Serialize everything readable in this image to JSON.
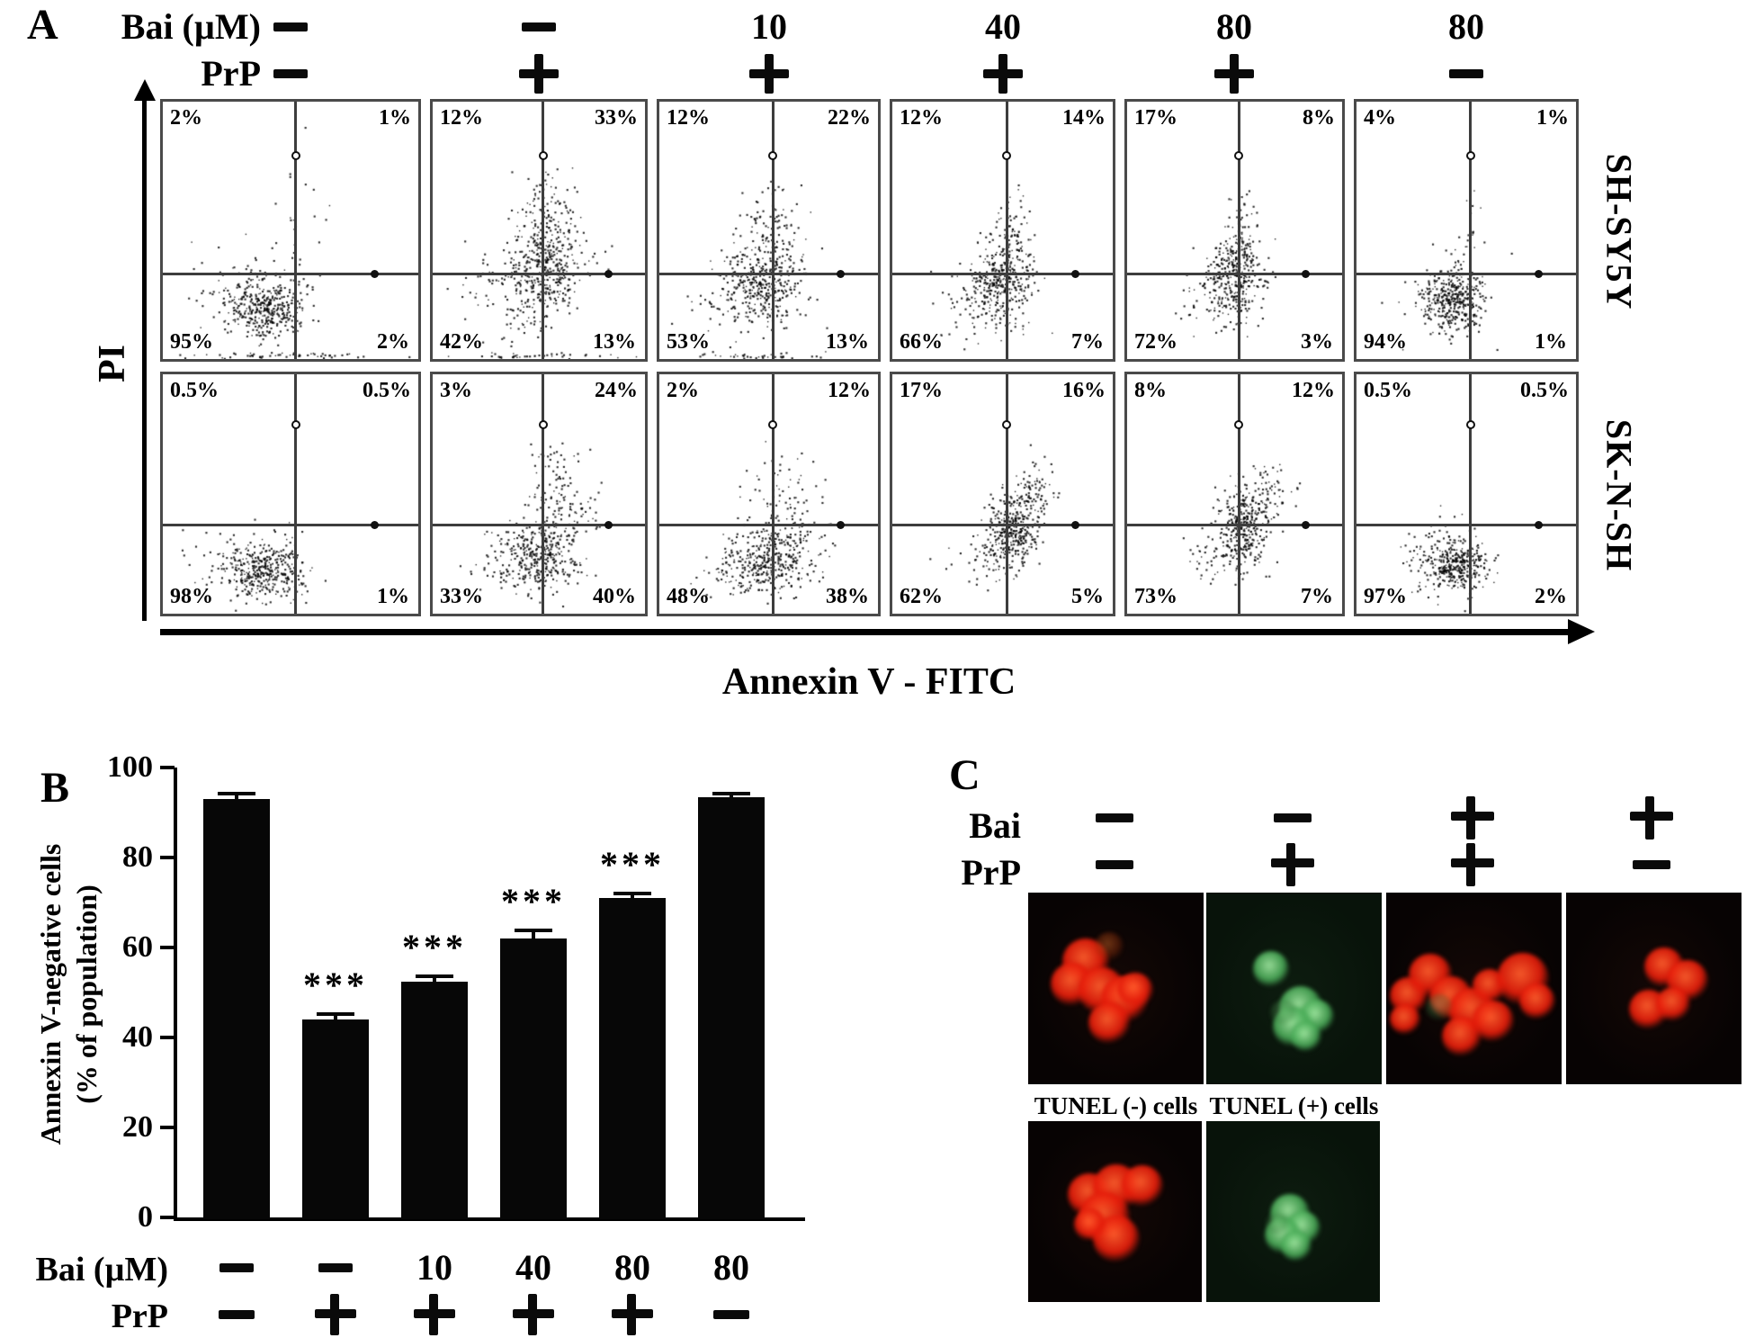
{
  "colors": {
    "red_core": "rgba(255,92,44,0.95)",
    "red_mid": "rgba(228,28,10,0.92)",
    "red_edge": "rgba(110,8,2,0)",
    "green_core": "rgba(160,232,160,0.92)",
    "green_mid": "rgba(74,172,88,0.88)",
    "green_edge": "rgba(18,58,24,0)",
    "red_image_bg": "#070303",
    "green_image_bg": "#08130a",
    "bar_color": "#070707"
  },
  "panel_a": {
    "label": "A",
    "bai_label": "Bai (µM)",
    "prp_label": "PrP",
    "bai_values": [
      "-",
      "-",
      "10",
      "40",
      "80",
      "80"
    ],
    "prp_values": [
      "-",
      "+",
      "+",
      "+",
      "+",
      "-"
    ],
    "y_axis_label": "PI",
    "x_axis_label": "Annexin V - FITC",
    "cell_lines": [
      "SH-SY5Y",
      "SK-N-SH"
    ],
    "rows": [
      {
        "cell_line": "SH-SY5Y",
        "plots": [
          {
            "tl": "2%",
            "tr": "1%",
            "bl": "95%",
            "br": "2%",
            "clusters": [
              [
                0.4,
                0.8,
                0.07,
                0.055,
                320
              ],
              [
                0.33,
                0.76,
                0.11,
                0.08,
                110
              ],
              [
                0.52,
                0.55,
                0.05,
                0.15,
                30
              ],
              [
                0.45,
                0.985,
                0.18,
                0.006,
                50
              ]
            ]
          },
          {
            "tl": "12%",
            "tr": "33%",
            "bl": "42%",
            "br": "13%",
            "clusters": [
              [
                0.52,
                0.66,
                0.09,
                0.085,
                330
              ],
              [
                0.54,
                0.48,
                0.08,
                0.09,
                150
              ],
              [
                0.36,
                0.74,
                0.12,
                0.09,
                90
              ],
              [
                0.45,
                0.985,
                0.18,
                0.006,
                40
              ]
            ]
          },
          {
            "tl": "12%",
            "tr": "22%",
            "bl": "53%",
            "br": "13%",
            "clusters": [
              [
                0.48,
                0.7,
                0.09,
                0.08,
                330
              ],
              [
                0.52,
                0.5,
                0.08,
                0.09,
                100
              ],
              [
                0.33,
                0.76,
                0.11,
                0.08,
                70
              ],
              [
                0.45,
                0.985,
                0.18,
                0.006,
                40
              ]
            ]
          },
          {
            "tl": "12%",
            "tr": "14%",
            "bl": "66%",
            "br": "7%",
            "clusters": [
              [
                0.49,
                0.7,
                0.075,
                0.08,
                320
              ],
              [
                0.54,
                0.52,
                0.06,
                0.08,
                80
              ],
              [
                0.36,
                0.78,
                0.1,
                0.07,
                60
              ]
            ]
          },
          {
            "tl": "17%",
            "tr": "8%",
            "bl": "72%",
            "br": "3%",
            "clusters": [
              [
                0.5,
                0.68,
                0.065,
                0.08,
                330
              ],
              [
                0.54,
                0.52,
                0.05,
                0.08,
                60
              ],
              [
                0.38,
                0.78,
                0.1,
                0.06,
                50
              ]
            ]
          },
          {
            "tl": "4%",
            "tr": "1%",
            "bl": "94%",
            "br": "1%",
            "clusters": [
              [
                0.45,
                0.78,
                0.07,
                0.06,
                320
              ],
              [
                0.38,
                0.74,
                0.1,
                0.08,
                90
              ],
              [
                0.52,
                0.55,
                0.04,
                0.12,
                25
              ]
            ]
          }
        ]
      },
      {
        "cell_line": "SK-N-SH",
        "plots": [
          {
            "tl": "0.5%",
            "tr": "0.5%",
            "bl": "98%",
            "br": "1%",
            "clusters": [
              [
                0.4,
                0.82,
                0.075,
                0.06,
                330
              ],
              [
                0.32,
                0.78,
                0.1,
                0.07,
                90
              ]
            ]
          },
          {
            "tl": "3%",
            "tr": "24%",
            "bl": "33%",
            "br": "40%",
            "clusters": [
              [
                0.5,
                0.76,
                0.09,
                0.075,
                300
              ],
              [
                0.6,
                0.58,
                0.09,
                0.08,
                110
              ],
              [
                0.56,
                0.4,
                0.07,
                0.07,
                40
              ],
              [
                0.38,
                0.8,
                0.1,
                0.06,
                60
              ]
            ]
          },
          {
            "tl": "2%",
            "tr": "12%",
            "bl": "48%",
            "br": "38%",
            "clusters": [
              [
                0.5,
                0.78,
                0.1,
                0.07,
                320
              ],
              [
                0.62,
                0.66,
                0.08,
                0.07,
                80
              ],
              [
                0.56,
                0.48,
                0.09,
                0.08,
                50
              ],
              [
                0.36,
                0.82,
                0.09,
                0.05,
                50
              ]
            ]
          },
          {
            "tl": "17%",
            "tr": "16%",
            "bl": "62%",
            "br": "5%",
            "clusters": [
              [
                0.54,
                0.64,
                0.055,
                0.07,
                320
              ],
              [
                0.63,
                0.5,
                0.055,
                0.06,
                90
              ],
              [
                0.42,
                0.76,
                0.09,
                0.06,
                60
              ]
            ]
          },
          {
            "tl": "8%",
            "tr": "12%",
            "bl": "73%",
            "br": "7%",
            "clusters": [
              [
                0.53,
                0.64,
                0.06,
                0.075,
                320
              ],
              [
                0.64,
                0.5,
                0.06,
                0.06,
                70
              ],
              [
                0.42,
                0.76,
                0.09,
                0.06,
                50
              ]
            ]
          },
          {
            "tl": "0.5%",
            "tr": "0.5%",
            "bl": "97%",
            "br": "2%",
            "clusters": [
              [
                0.45,
                0.8,
                0.075,
                0.055,
                330
              ],
              [
                0.37,
                0.75,
                0.09,
                0.07,
                80
              ]
            ]
          }
        ]
      }
    ]
  },
  "panel_b": {
    "label": "B",
    "ylabel_line1": "Annexin V-negative cells",
    "ylabel_line2": "(% of population)",
    "yticks": [
      0,
      20,
      40,
      60,
      80,
      100
    ],
    "bai_label": "Bai (µM)",
    "prp_label": "PrP",
    "bai_values": [
      "-",
      "-",
      "10",
      "40",
      "80",
      "80"
    ],
    "prp_values": [
      "-",
      "+",
      "+",
      "+",
      "+",
      "-"
    ],
    "bars": [
      {
        "value": 93,
        "err": 1.2,
        "sig": ""
      },
      {
        "value": 44,
        "err": 1.2,
        "sig": "***"
      },
      {
        "value": 52.5,
        "err": 1.2,
        "sig": "***"
      },
      {
        "value": 62,
        "err": 1.8,
        "sig": "***"
      },
      {
        "value": 71,
        "err": 1.0,
        "sig": "***"
      },
      {
        "value": 93.5,
        "err": 0.8,
        "sig": ""
      }
    ]
  },
  "panel_c": {
    "label": "C",
    "bai_label": "Bai",
    "prp_label": "PrP",
    "bai_values": [
      "-",
      "-",
      "+",
      "+"
    ],
    "prp_values": [
      "-",
      "+",
      "+",
      "-"
    ],
    "tunel_neg_label": "TUNEL (-) cells",
    "tunel_pos_label": "TUNEL (+) cells",
    "images_top": [
      {
        "bg": "red",
        "cells": [
          [
            33,
            36,
            26,
            "red"
          ],
          [
            25,
            48,
            24,
            "red"
          ],
          [
            42,
            51,
            26,
            "red"
          ],
          [
            55,
            56,
            26,
            "red"
          ],
          [
            46,
            68,
            23,
            "red"
          ],
          [
            61,
            51,
            20,
            "red"
          ],
          [
            46,
            28,
            16,
            "red-faint"
          ]
        ]
      },
      {
        "bg": "green",
        "cells": [
          [
            37,
            40,
            20,
            "green"
          ],
          [
            54,
            60,
            24,
            "green"
          ],
          [
            63,
            65,
            19,
            "green"
          ],
          [
            49,
            70,
            22,
            "green"
          ],
          [
            57,
            75,
            17,
            "green"
          ],
          [
            44,
            63,
            15,
            "green-faint"
          ]
        ]
      },
      {
        "bg": "red",
        "cells": [
          [
            13,
            54,
            21,
            "red"
          ],
          [
            25,
            43,
            24,
            "red"
          ],
          [
            11,
            66,
            17,
            "red"
          ],
          [
            37,
            55,
            24,
            "red"
          ],
          [
            49,
            62,
            26,
            "red"
          ],
          [
            43,
            75,
            22,
            "red"
          ],
          [
            61,
            67,
            23,
            "red"
          ],
          [
            59,
            49,
            19,
            "red"
          ],
          [
            78,
            45,
            29,
            "red"
          ],
          [
            86,
            57,
            20,
            "red"
          ],
          [
            30,
            60,
            15,
            "green-faint"
          ]
        ]
      },
      {
        "bg": "red",
        "cells": [
          [
            56,
            39,
            22,
            "red"
          ],
          [
            69,
            46,
            23,
            "red"
          ],
          [
            47,
            61,
            22,
            "red"
          ],
          [
            61,
            58,
            19,
            "red"
          ]
        ]
      }
    ],
    "images_bottom": [
      {
        "bg": "red",
        "cells": [
          [
            35,
            41,
            24,
            "red"
          ],
          [
            51,
            37,
            26,
            "red"
          ],
          [
            66,
            36,
            23,
            "red"
          ],
          [
            44,
            53,
            28,
            "red"
          ],
          [
            51,
            65,
            26,
            "red"
          ],
          [
            36,
            57,
            18,
            "red"
          ]
        ]
      },
      {
        "bg": "green",
        "cells": [
          [
            48,
            51,
            22,
            "green"
          ],
          [
            56,
            59,
            19,
            "green"
          ],
          [
            44,
            63,
            20,
            "green"
          ],
          [
            52,
            69,
            17,
            "green"
          ],
          [
            41,
            57,
            13,
            "green-faint"
          ]
        ]
      }
    ]
  },
  "chart_data": [
    {
      "type": "bar",
      "title": "",
      "categories": [
        "Bai -/PrP -",
        "Bai -/PrP +",
        "Bai 10/PrP +",
        "Bai 40/PrP +",
        "Bai 80/PrP +",
        "Bai 80/PrP -"
      ],
      "values": [
        93,
        44,
        52.5,
        62,
        71,
        93.5
      ],
      "errors": [
        1.2,
        1.2,
        1.2,
        1.8,
        1.0,
        0.8
      ],
      "significance": [
        "",
        "***",
        "***",
        "***",
        "***",
        ""
      ],
      "xlabel": "",
      "ylabel": "Annexin V-negative cells (% of population)",
      "ylim": [
        0,
        100
      ],
      "yticks": [
        0,
        20,
        40,
        60,
        80,
        100
      ],
      "grid": false,
      "legend": "none",
      "bar_color": "#070707"
    },
    {
      "type": "table",
      "title": "Flow cytometry quadrant percentages (x: Annexin V - FITC, y: PI)",
      "columns": [
        "cell_line",
        "condition",
        "upper_left",
        "upper_right",
        "lower_left",
        "lower_right"
      ],
      "rows": [
        [
          "SH-SY5Y",
          "Bai -/PrP -",
          "2%",
          "1%",
          "95%",
          "2%"
        ],
        [
          "SH-SY5Y",
          "Bai -/PrP +",
          "12%",
          "33%",
          "42%",
          "13%"
        ],
        [
          "SH-SY5Y",
          "Bai 10/PrP +",
          "12%",
          "22%",
          "53%",
          "13%"
        ],
        [
          "SH-SY5Y",
          "Bai 40/PrP +",
          "12%",
          "14%",
          "66%",
          "7%"
        ],
        [
          "SH-SY5Y",
          "Bai 80/PrP +",
          "17%",
          "8%",
          "72%",
          "3%"
        ],
        [
          "SH-SY5Y",
          "Bai 80/PrP -",
          "4%",
          "1%",
          "94%",
          "1%"
        ],
        [
          "SK-N-SH",
          "Bai -/PrP -",
          "0.5%",
          "0.5%",
          "98%",
          "1%"
        ],
        [
          "SK-N-SH",
          "Bai -/PrP +",
          "3%",
          "24%",
          "33%",
          "40%"
        ],
        [
          "SK-N-SH",
          "Bai 10/PrP +",
          "2%",
          "12%",
          "48%",
          "38%"
        ],
        [
          "SK-N-SH",
          "Bai 40/PrP +",
          "17%",
          "16%",
          "62%",
          "5%"
        ],
        [
          "SK-N-SH",
          "Bai 80/PrP +",
          "8%",
          "12%",
          "73%",
          "7%"
        ],
        [
          "SK-N-SH",
          "Bai 80/PrP -",
          "0.5%",
          "0.5%",
          "97%",
          "2%"
        ]
      ]
    }
  ]
}
